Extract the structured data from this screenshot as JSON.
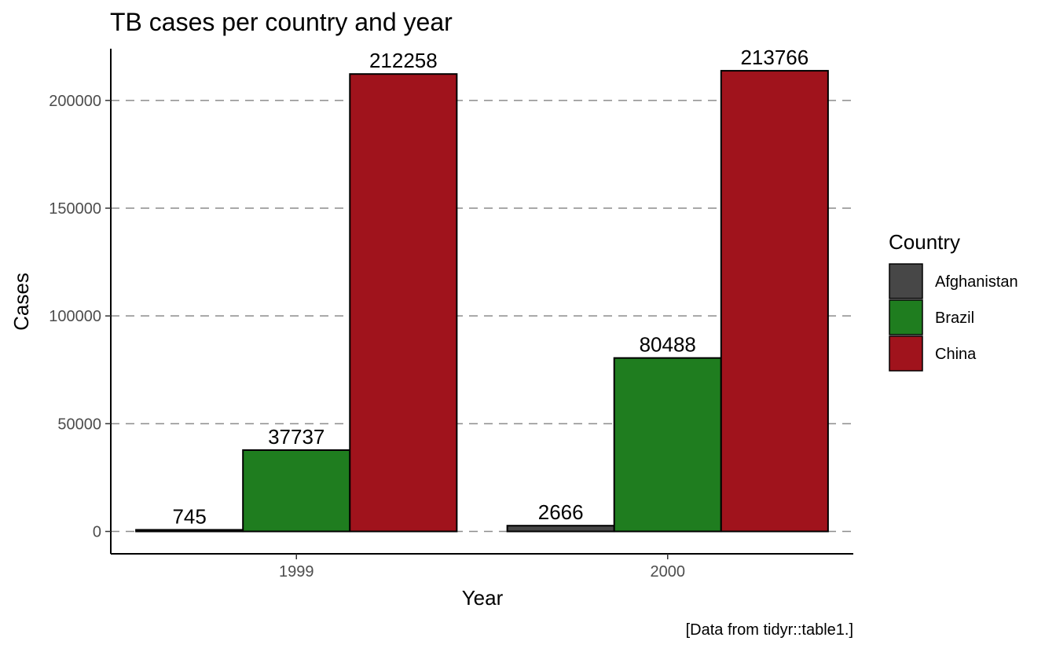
{
  "chart_data": {
    "type": "bar",
    "title": "TB cases per country and year",
    "xlabel": "Year",
    "ylabel": "Cases",
    "caption": "[Data from tidyr::table1.]",
    "categories": [
      "1999",
      "2000"
    ],
    "series": [
      {
        "name": "Afghanistan",
        "color": "#474747",
        "values": [
          745,
          2666
        ],
        "labels": [
          "745",
          "2666"
        ]
      },
      {
        "name": "Brazil",
        "color": "#1f7d1f",
        "values": [
          37737,
          80488
        ],
        "labels": [
          "37737",
          "80488"
        ]
      },
      {
        "name": "China",
        "color": "#a0131c",
        "values": [
          212258,
          213766
        ],
        "labels": [
          "212258",
          "213766"
        ]
      }
    ],
    "ylim": [
      -10380,
      224000
    ],
    "yticks": [
      0,
      50000,
      100000,
      150000,
      200000
    ],
    "ytick_labels": [
      "0",
      "50000",
      "100000",
      "150000",
      "200000"
    ],
    "grid": "horizontal dashed",
    "legend": {
      "title": "Country",
      "placement": "right"
    }
  }
}
